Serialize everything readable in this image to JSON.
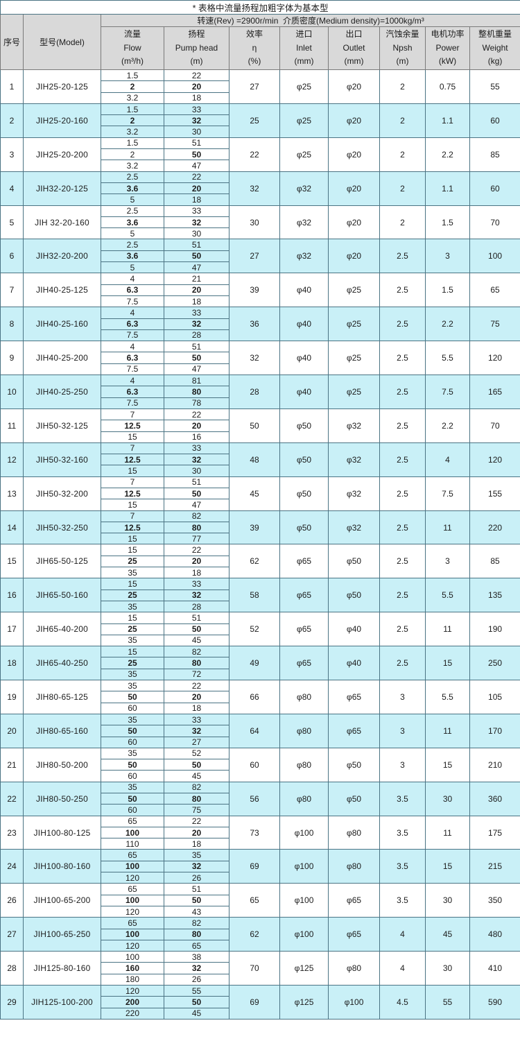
{
  "title": "* 表格中流量扬程加粗字体为基本型",
  "subtitle": "转速(Rev) =2900r/min  介质密度(Medium density)=1000kg/m³",
  "columns": {
    "index": "序号",
    "model": "型号(Model)",
    "flow": [
      "流量",
      "Flow",
      "(m³/h)"
    ],
    "head": [
      "扬程",
      "Pump head",
      "(m)"
    ],
    "efficiency": [
      "效率",
      "η",
      "(%)"
    ],
    "inlet": [
      "进口",
      "Inlet",
      "(mm)"
    ],
    "outlet": [
      "出口",
      "Outlet",
      "(mm)"
    ],
    "npsh": [
      "汽蚀余量",
      "Npsh",
      "(m)"
    ],
    "power": [
      "电机功率",
      "Power",
      "(kW)"
    ],
    "weight": [
      "整机重量",
      "Weight",
      "(kg)"
    ]
  },
  "colors": {
    "row_alt": "#c9f0f7",
    "header_bg": "#d9d9d9",
    "border": "#4a7383",
    "border_strong": "#3d5d6b"
  },
  "rows": [
    {
      "no": "1",
      "model": "JIH25-20-125",
      "flow": [
        "1.5",
        "2",
        "3.2"
      ],
      "head": [
        "22",
        "20",
        "18"
      ],
      "flow_mid_bold": true,
      "eff": "27",
      "inlet": "φ25",
      "outlet": "φ20",
      "npsh": "2",
      "power": "0.75",
      "weight": "55"
    },
    {
      "no": "2",
      "model": "JIH25-20-160",
      "flow": [
        "1.5",
        "2",
        "3.2"
      ],
      "head": [
        "33",
        "32",
        "30"
      ],
      "flow_mid_bold": true,
      "eff": "25",
      "inlet": "φ25",
      "outlet": "φ20",
      "npsh": "2",
      "power": "1.1",
      "weight": "60"
    },
    {
      "no": "3",
      "model": "JIH25-20-200",
      "flow": [
        "1.5",
        "2",
        "3.2"
      ],
      "head": [
        "51",
        "50",
        "47"
      ],
      "flow_mid_bold": false,
      "eff": "22",
      "inlet": "φ25",
      "outlet": "φ20",
      "npsh": "2",
      "power": "2.2",
      "weight": "85"
    },
    {
      "no": "4",
      "model": "JIH32-20-125",
      "flow": [
        "2.5",
        "3.6",
        "5"
      ],
      "head": [
        "22",
        "20",
        "18"
      ],
      "flow_mid_bold": true,
      "eff": "32",
      "inlet": "φ32",
      "outlet": "φ20",
      "npsh": "2",
      "power": "1.1",
      "weight": "60"
    },
    {
      "no": "5",
      "model": "JIH 32-20-160",
      "flow": [
        "2.5",
        "3.6",
        "5"
      ],
      "head": [
        "33",
        "32",
        "30"
      ],
      "flow_mid_bold": true,
      "eff": "30",
      "inlet": "φ32",
      "outlet": "φ20",
      "npsh": "2",
      "power": "1.5",
      "weight": "70"
    },
    {
      "no": "6",
      "model": "JIH32-20-200",
      "flow": [
        "2.5",
        "3.6",
        "5"
      ],
      "head": [
        "51",
        "50",
        "47"
      ],
      "flow_mid_bold": true,
      "eff": "27",
      "inlet": "φ32",
      "outlet": "φ20",
      "npsh": "2.5",
      "power": "3",
      "weight": "100"
    },
    {
      "no": "7",
      "model": "JIH40-25-125",
      "flow": [
        "4",
        "6.3",
        "7.5"
      ],
      "head": [
        "21",
        "20",
        "18"
      ],
      "flow_mid_bold": true,
      "eff": "39",
      "inlet": "φ40",
      "outlet": "φ25",
      "npsh": "2.5",
      "power": "1.5",
      "weight": "65"
    },
    {
      "no": "8",
      "model": "JIH40-25-160",
      "flow": [
        "4",
        "6.3",
        "7.5"
      ],
      "head": [
        "33",
        "32",
        "28"
      ],
      "flow_mid_bold": true,
      "eff": "36",
      "inlet": "φ40",
      "outlet": "φ25",
      "npsh": "2.5",
      "power": "2.2",
      "weight": "75"
    },
    {
      "no": "9",
      "model": "JIH40-25-200",
      "flow": [
        "4",
        "6.3",
        "7.5"
      ],
      "head": [
        "51",
        "50",
        "47"
      ],
      "flow_mid_bold": true,
      "eff": "32",
      "inlet": "φ40",
      "outlet": "φ25",
      "npsh": "2.5",
      "power": "5.5",
      "weight": "120"
    },
    {
      "no": "10",
      "model": "JIH40-25-250",
      "flow": [
        "4",
        "6.3",
        "7.5"
      ],
      "head": [
        "81",
        "80",
        "78"
      ],
      "flow_mid_bold": true,
      "eff": "28",
      "inlet": "φ40",
      "outlet": "φ25",
      "npsh": "2.5",
      "power": "7.5",
      "weight": "165"
    },
    {
      "no": "11",
      "model": "JIH50-32-125",
      "flow": [
        "7",
        "12.5",
        "15"
      ],
      "head": [
        "22",
        "20",
        "16"
      ],
      "flow_mid_bold": true,
      "eff": "50",
      "inlet": "φ50",
      "outlet": "φ32",
      "npsh": "2.5",
      "power": "2.2",
      "weight": "70"
    },
    {
      "no": "12",
      "model": "JIH50-32-160",
      "flow": [
        "7",
        "12.5",
        "15"
      ],
      "head": [
        "33",
        "32",
        "30"
      ],
      "flow_mid_bold": true,
      "eff": "48",
      "inlet": "φ50",
      "outlet": "φ32",
      "npsh": "2.5",
      "power": "4",
      "weight": "120"
    },
    {
      "no": "13",
      "model": "JIH50-32-200",
      "flow": [
        "7",
        "12.5",
        "15"
      ],
      "head": [
        "51",
        "50",
        "47"
      ],
      "flow_mid_bold": true,
      "eff": "45",
      "inlet": "φ50",
      "outlet": "φ32",
      "npsh": "2.5",
      "power": "7.5",
      "weight": "155"
    },
    {
      "no": "14",
      "model": "JIH50-32-250",
      "flow": [
        "7",
        "12.5",
        "15"
      ],
      "head": [
        "82",
        "80",
        "77"
      ],
      "flow_mid_bold": true,
      "eff": "39",
      "inlet": "φ50",
      "outlet": "φ32",
      "npsh": "2.5",
      "power": "11",
      "weight": "220"
    },
    {
      "no": "15",
      "model": "JIH65-50-125",
      "flow": [
        "15",
        "25",
        "35"
      ],
      "head": [
        "22",
        "20",
        "18"
      ],
      "flow_mid_bold": true,
      "eff": "62",
      "inlet": "φ65",
      "outlet": "φ50",
      "npsh": "2.5",
      "power": "3",
      "weight": "85"
    },
    {
      "no": "16",
      "model": "JIH65-50-160",
      "flow": [
        "15",
        "25",
        "35"
      ],
      "head": [
        "33",
        "32",
        "28"
      ],
      "flow_mid_bold": true,
      "eff": "58",
      "inlet": "φ65",
      "outlet": "φ50",
      "npsh": "2.5",
      "power": "5.5",
      "weight": "135"
    },
    {
      "no": "17",
      "model": "JIH65-40-200",
      "flow": [
        "15",
        "25",
        "35"
      ],
      "head": [
        "51",
        "50",
        "45"
      ],
      "flow_mid_bold": true,
      "eff": "52",
      "inlet": "φ65",
      "outlet": "φ40",
      "npsh": "2.5",
      "power": "11",
      "weight": "190"
    },
    {
      "no": "18",
      "model": "JIH65-40-250",
      "flow": [
        "15",
        "25",
        "35"
      ],
      "head": [
        "82",
        "80",
        "72"
      ],
      "flow_mid_bold": true,
      "eff": "49",
      "inlet": "φ65",
      "outlet": "φ40",
      "npsh": "2.5",
      "power": "15",
      "weight": "250"
    },
    {
      "no": "19",
      "model": "JIH80-65-125",
      "flow": [
        "35",
        "50",
        "60"
      ],
      "head": [
        "22",
        "20",
        "18"
      ],
      "flow_mid_bold": true,
      "eff": "66",
      "inlet": "φ80",
      "outlet": "φ65",
      "npsh": "3",
      "power": "5.5",
      "weight": "105"
    },
    {
      "no": "20",
      "model": "JIH80-65-160",
      "flow": [
        "35",
        "50",
        "60"
      ],
      "head": [
        "33",
        "32",
        "27"
      ],
      "flow_mid_bold": true,
      "eff": "64",
      "inlet": "φ80",
      "outlet": "φ65",
      "npsh": "3",
      "power": "11",
      "weight": "170"
    },
    {
      "no": "21",
      "model": "JIH80-50-200",
      "flow": [
        "35",
        "50",
        "60"
      ],
      "head": [
        "52",
        "50",
        "45"
      ],
      "flow_mid_bold": true,
      "eff": "60",
      "inlet": "φ80",
      "outlet": "φ50",
      "npsh": "3",
      "power": "15",
      "weight": "210"
    },
    {
      "no": "22",
      "model": "JIH80-50-250",
      "flow": [
        "35",
        "50",
        "60"
      ],
      "head": [
        "82",
        "80",
        "75"
      ],
      "flow_mid_bold": true,
      "eff": "56",
      "inlet": "φ80",
      "outlet": "φ50",
      "npsh": "3.5",
      "power": "30",
      "weight": "360"
    },
    {
      "no": "23",
      "model": "JIH100-80-125",
      "flow": [
        "65",
        "100",
        "110"
      ],
      "head": [
        "22",
        "20",
        "18"
      ],
      "flow_mid_bold": true,
      "eff": "73",
      "inlet": "φ100",
      "outlet": "φ80",
      "npsh": "3.5",
      "power": "11",
      "weight": "175"
    },
    {
      "no": "24",
      "model": "JIH100-80-160",
      "flow": [
        "65",
        "100",
        "120"
      ],
      "head": [
        "35",
        "32",
        "26"
      ],
      "flow_mid_bold": true,
      "eff": "69",
      "inlet": "φ100",
      "outlet": "φ80",
      "npsh": "3.5",
      "power": "15",
      "weight": "215"
    },
    {
      "no": "26",
      "model": "JIH100-65-200",
      "flow": [
        "65",
        "100",
        "120"
      ],
      "head": [
        "51",
        "50",
        "43"
      ],
      "flow_mid_bold": true,
      "eff": "65",
      "inlet": "φ100",
      "outlet": "φ65",
      "npsh": "3.5",
      "power": "30",
      "weight": "350"
    },
    {
      "no": "27",
      "model": "JIH100-65-250",
      "flow": [
        "65",
        "100",
        "120"
      ],
      "head": [
        "82",
        "80",
        "65"
      ],
      "flow_mid_bold": true,
      "eff": "62",
      "inlet": "φ100",
      "outlet": "φ65",
      "npsh": "4",
      "power": "45",
      "weight": "480"
    },
    {
      "no": "28",
      "model": "JIH125-80-160",
      "flow": [
        "100",
        "160",
        "180"
      ],
      "head": [
        "38",
        "32",
        "26"
      ],
      "flow_mid_bold": true,
      "eff": "70",
      "inlet": "φ125",
      "outlet": "φ80",
      "npsh": "4",
      "power": "30",
      "weight": "410"
    },
    {
      "no": "29",
      "model": "JIH125-100-200",
      "flow": [
        "120",
        "200",
        "220"
      ],
      "head": [
        "55",
        "50",
        "45"
      ],
      "flow_mid_bold": true,
      "eff": "69",
      "inlet": "φ125",
      "outlet": "φ100",
      "npsh": "4.5",
      "power": "55",
      "weight": "590"
    }
  ]
}
